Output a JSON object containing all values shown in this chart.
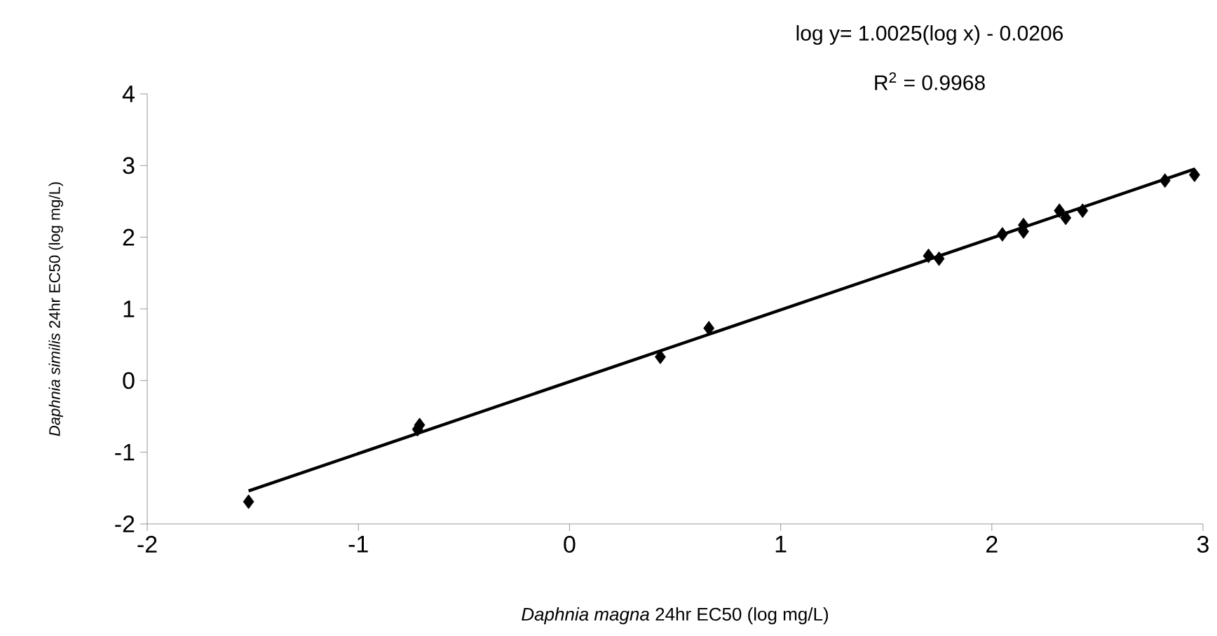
{
  "chart_data": {
    "type": "scatter",
    "xlabel": "*Daphnia magna* 24hr EC50 (log mg/L)",
    "ylabel": "*Daphnia similis*  24hr EC50 (log mg/L)",
    "annotations": [
      "log y= 1.0025(log x) - 0.0206",
      "R$^{2}$ = 0.9968"
    ],
    "xlim": [
      -2,
      3
    ],
    "xticks": [
      -2,
      -1,
      0,
      1,
      2,
      3
    ],
    "ylim": [
      -2,
      4
    ],
    "yticks": [
      -2,
      -1,
      0,
      1,
      2,
      3,
      4
    ],
    "grid": false,
    "series": [
      {
        "marker": "diamond",
        "color": "#000000",
        "x": [
          -1.52,
          -0.72,
          -0.71,
          0.43,
          0.66,
          1.7,
          1.75,
          2.05,
          2.15,
          2.15,
          2.32,
          2.35,
          2.43,
          2.82,
          2.96
        ],
        "values": [
          -1.69,
          -0.68,
          -0.62,
          0.33,
          0.73,
          1.74,
          1.7,
          2.04,
          2.17,
          2.08,
          2.37,
          2.27,
          2.37,
          2.79,
          2.87
        ]
      },
      {
        "type": "line",
        "marker": "none",
        "line_style": "solid",
        "color": "#000000",
        "x": [
          -1.52,
          2.96
        ],
        "values": [
          -1.54,
          2.95
        ]
      }
    ]
  }
}
